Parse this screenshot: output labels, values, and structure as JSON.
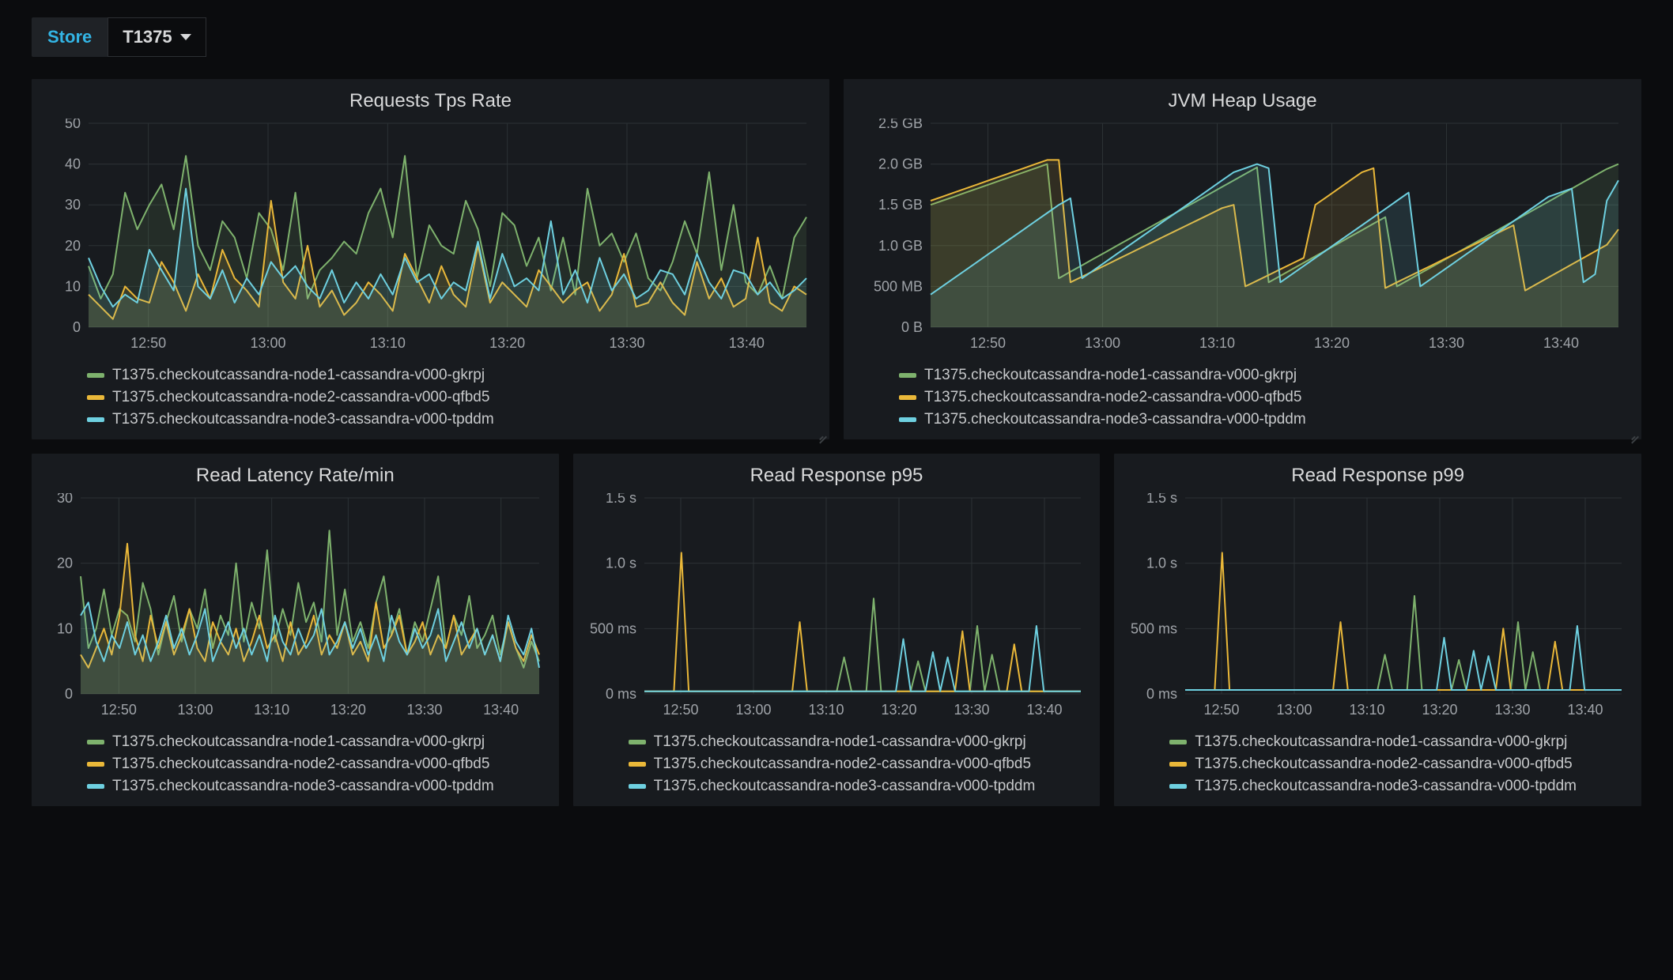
{
  "toolbar": {
    "store_label": "Store",
    "store_value": "T1375"
  },
  "colors": {
    "panel_bg": "#181b1f",
    "grid": "#2c3235",
    "axis_text": "#9fa3a8",
    "series1": "#7eb26d",
    "series2": "#eab839",
    "series3": "#6ed0e0",
    "store_label_fg": "#33b5e5"
  },
  "legend_labels": [
    "T1375.checkoutcassandra-node1-cassandra-v000-gkrpj",
    "T1375.checkoutcassandra-node2-cassandra-v000-qfbd5",
    "T1375.checkoutcassandra-node3-cassandra-v000-tpddm"
  ],
  "x_ticks": [
    "12:50",
    "13:00",
    "13:10",
    "13:20",
    "13:30",
    "13:40"
  ],
  "panels": {
    "tps": {
      "title": "Requests Tps Rate",
      "type": "line-area",
      "ylim": [
        0,
        50
      ],
      "ytick_step": 10,
      "y_labels": [
        "0",
        "10",
        "20",
        "30",
        "40",
        "50"
      ],
      "fill_opacity": 0.12,
      "line_width": 2,
      "n_points": 60,
      "series": [
        [
          15,
          7,
          13,
          33,
          24,
          30,
          35,
          24,
          42,
          20,
          14,
          26,
          22,
          12,
          28,
          24,
          14,
          33,
          7,
          14,
          17,
          21,
          18,
          28,
          34,
          22,
          42,
          12,
          25,
          20,
          18,
          31,
          24,
          10,
          28,
          25,
          15,
          22,
          9,
          22,
          8,
          34,
          20,
          23,
          16,
          23,
          12,
          9,
          16,
          26,
          18,
          38,
          14,
          30,
          11,
          8,
          15,
          7,
          22,
          27
        ],
        [
          8,
          5,
          2,
          10,
          7,
          6,
          16,
          11,
          4,
          13,
          7,
          19,
          12,
          9,
          5,
          31,
          11,
          7,
          20,
          5,
          9,
          3,
          6,
          11,
          8,
          4,
          18,
          12,
          6,
          15,
          8,
          5,
          20,
          6,
          11,
          8,
          5,
          14,
          10,
          6,
          9,
          11,
          4,
          8,
          18,
          5,
          6,
          11,
          6,
          3,
          16,
          7,
          12,
          5,
          7,
          22,
          6,
          4,
          10,
          8
        ],
        [
          17,
          10,
          5,
          8,
          6,
          19,
          14,
          9,
          34,
          10,
          7,
          14,
          6,
          12,
          8,
          16,
          12,
          15,
          10,
          7,
          14,
          6,
          11,
          7,
          13,
          8,
          17,
          11,
          13,
          7,
          11,
          9,
          21,
          7,
          18,
          10,
          12,
          9,
          26,
          8,
          14,
          6,
          17,
          9,
          13,
          7,
          9,
          14,
          13,
          8,
          18,
          11,
          7,
          14,
          13,
          8,
          11,
          7,
          9,
          12
        ]
      ]
    },
    "heap": {
      "title": "JVM Heap Usage",
      "type": "line-area",
      "ylim": [
        0,
        2.5
      ],
      "y_labels": [
        "0 B",
        "500 MB",
        "1.0 GB",
        "1.5 GB",
        "2.0 GB",
        "2.5 GB"
      ],
      "fill_opacity": 0.12,
      "line_width": 2,
      "n_points": 60,
      "series": [
        [
          1.5,
          1.55,
          1.6,
          1.65,
          1.7,
          1.75,
          1.8,
          1.85,
          1.9,
          1.95,
          2.0,
          0.6,
          0.68,
          0.76,
          0.84,
          0.92,
          1.0,
          1.08,
          1.16,
          1.24,
          1.32,
          1.4,
          1.48,
          1.56,
          1.64,
          1.72,
          1.8,
          1.88,
          1.96,
          0.55,
          0.63,
          0.71,
          0.79,
          0.87,
          0.95,
          1.03,
          1.11,
          1.19,
          1.27,
          1.35,
          0.5,
          0.58,
          0.66,
          0.74,
          0.82,
          0.9,
          0.98,
          1.06,
          1.14,
          1.22,
          1.3,
          1.38,
          1.46,
          1.54,
          1.62,
          1.7,
          1.78,
          1.86,
          1.94,
          2.0
        ],
        [
          1.55,
          1.6,
          1.65,
          1.7,
          1.75,
          1.8,
          1.85,
          1.9,
          1.95,
          2.0,
          2.05,
          2.05,
          0.55,
          0.62,
          0.69,
          0.76,
          0.83,
          0.9,
          0.97,
          1.04,
          1.11,
          1.18,
          1.25,
          1.32,
          1.39,
          1.46,
          1.5,
          0.5,
          0.57,
          0.64,
          0.71,
          0.78,
          0.85,
          1.5,
          1.6,
          1.7,
          1.8,
          1.9,
          1.95,
          0.48,
          0.55,
          0.62,
          0.69,
          0.76,
          0.83,
          0.9,
          0.97,
          1.04,
          1.11,
          1.18,
          1.25,
          0.45,
          0.53,
          0.61,
          0.69,
          0.77,
          0.85,
          0.93,
          1.01,
          1.2
        ],
        [
          0.4,
          0.5,
          0.6,
          0.7,
          0.8,
          0.9,
          1.0,
          1.1,
          1.2,
          1.3,
          1.4,
          1.5,
          1.58,
          0.6,
          0.7,
          0.8,
          0.9,
          1.0,
          1.1,
          1.2,
          1.3,
          1.4,
          1.5,
          1.6,
          1.7,
          1.8,
          1.9,
          1.95,
          2.0,
          1.95,
          0.55,
          0.65,
          0.75,
          0.85,
          0.95,
          1.05,
          1.15,
          1.25,
          1.35,
          1.45,
          1.55,
          1.65,
          0.5,
          0.6,
          0.7,
          0.8,
          0.9,
          1.0,
          1.1,
          1.2,
          1.3,
          1.4,
          1.5,
          1.6,
          1.65,
          1.7,
          0.55,
          0.65,
          1.55,
          1.8
        ]
      ]
    },
    "latency": {
      "title": "Read Latency Rate/min",
      "type": "line-area",
      "ylim": [
        0,
        30
      ],
      "ytick_step": 10,
      "y_labels": [
        "0",
        "10",
        "20",
        "30"
      ],
      "fill_opacity": 0.12,
      "line_width": 2,
      "n_points": 60,
      "series": [
        [
          18,
          7,
          10,
          16,
          9,
          13,
          12,
          8,
          17,
          13,
          6,
          11,
          15,
          8,
          13,
          10,
          16,
          7,
          12,
          9,
          20,
          8,
          14,
          10,
          22,
          8,
          13,
          9,
          17,
          11,
          14,
          8,
          25,
          9,
          16,
          8,
          11,
          7,
          14,
          18,
          9,
          13,
          6,
          11,
          8,
          13,
          18,
          7,
          12,
          9,
          15,
          7,
          9,
          12,
          6,
          11,
          7,
          4,
          8,
          5
        ],
        [
          6,
          4,
          7,
          10,
          6,
          12,
          23,
          9,
          5,
          12,
          7,
          11,
          6,
          9,
          13,
          7,
          5,
          11,
          8,
          6,
          10,
          5,
          8,
          12,
          7,
          9,
          5,
          11,
          6,
          8,
          12,
          6,
          9,
          7,
          11,
          6,
          8,
          5,
          14,
          7,
          9,
          12,
          6,
          8,
          11,
          6,
          9,
          7,
          12,
          6,
          8,
          10,
          6,
          9,
          5,
          11,
          7,
          5,
          9,
          6
        ],
        [
          12,
          14,
          8,
          5,
          9,
          7,
          11,
          6,
          9,
          5,
          8,
          12,
          7,
          10,
          6,
          9,
          13,
          5,
          8,
          11,
          7,
          10,
          6,
          9,
          5,
          12,
          8,
          6,
          10,
          7,
          9,
          13,
          6,
          8,
          11,
          7,
          10,
          6,
          9,
          5,
          12,
          8,
          6,
          10,
          7,
          9,
          13,
          5,
          8,
          11,
          7,
          10,
          6,
          9,
          5,
          12,
          8,
          6,
          10,
          4
        ]
      ]
    },
    "p95": {
      "title": "Read Response p95",
      "type": "line",
      "ylim": [
        0,
        1.5
      ],
      "y_labels": [
        "0 ms",
        "500 ms",
        "1.0 s",
        "1.5 s"
      ],
      "line_width": 2,
      "n_points": 60,
      "series": [
        [
          0.02,
          0.02,
          0.02,
          0.02,
          0.02,
          0.02,
          0.02,
          0.02,
          0.02,
          0.02,
          0.02,
          0.02,
          0.02,
          0.02,
          0.02,
          0.02,
          0.02,
          0.02,
          0.02,
          0.02,
          0.02,
          0.02,
          0.02,
          0.02,
          0.02,
          0.02,
          0.02,
          0.28,
          0.02,
          0.02,
          0.02,
          0.73,
          0.02,
          0.02,
          0.02,
          0.02,
          0.02,
          0.25,
          0.02,
          0.02,
          0.02,
          0.02,
          0.02,
          0.02,
          0.02,
          0.52,
          0.02,
          0.3,
          0.02,
          0.02,
          0.02,
          0.02,
          0.02,
          0.02,
          0.02,
          0.02,
          0.02,
          0.02,
          0.02,
          0.02
        ],
        [
          0.02,
          0.02,
          0.02,
          0.02,
          0.02,
          1.08,
          0.02,
          0.02,
          0.02,
          0.02,
          0.02,
          0.02,
          0.02,
          0.02,
          0.02,
          0.02,
          0.02,
          0.02,
          0.02,
          0.02,
          0.02,
          0.55,
          0.02,
          0.02,
          0.02,
          0.02,
          0.02,
          0.02,
          0.02,
          0.02,
          0.02,
          0.02,
          0.02,
          0.02,
          0.02,
          0.02,
          0.02,
          0.02,
          0.02,
          0.02,
          0.02,
          0.02,
          0.02,
          0.48,
          0.02,
          0.02,
          0.02,
          0.02,
          0.02,
          0.02,
          0.38,
          0.02,
          0.02,
          0.02,
          0.02,
          0.02,
          0.02,
          0.02,
          0.02,
          0.02
        ],
        [
          0.02,
          0.02,
          0.02,
          0.02,
          0.02,
          0.02,
          0.02,
          0.02,
          0.02,
          0.02,
          0.02,
          0.02,
          0.02,
          0.02,
          0.02,
          0.02,
          0.02,
          0.02,
          0.02,
          0.02,
          0.02,
          0.02,
          0.02,
          0.02,
          0.02,
          0.02,
          0.02,
          0.02,
          0.02,
          0.02,
          0.02,
          0.02,
          0.02,
          0.02,
          0.02,
          0.42,
          0.02,
          0.02,
          0.02,
          0.32,
          0.02,
          0.28,
          0.02,
          0.02,
          0.02,
          0.02,
          0.02,
          0.02,
          0.02,
          0.02,
          0.02,
          0.02,
          0.02,
          0.52,
          0.02,
          0.02,
          0.02,
          0.02,
          0.02,
          0.02
        ]
      ]
    },
    "p99": {
      "title": "Read Response p99",
      "type": "line",
      "ylim": [
        0,
        1.5
      ],
      "y_labels": [
        "0 ms",
        "500 ms",
        "1.0 s",
        "1.5 s"
      ],
      "line_width": 2,
      "n_points": 60,
      "series": [
        [
          0.03,
          0.03,
          0.03,
          0.03,
          0.03,
          0.03,
          0.03,
          0.03,
          0.03,
          0.03,
          0.03,
          0.03,
          0.03,
          0.03,
          0.03,
          0.03,
          0.03,
          0.03,
          0.03,
          0.03,
          0.03,
          0.03,
          0.03,
          0.03,
          0.03,
          0.03,
          0.03,
          0.3,
          0.03,
          0.03,
          0.03,
          0.75,
          0.03,
          0.03,
          0.03,
          0.03,
          0.03,
          0.26,
          0.03,
          0.03,
          0.03,
          0.03,
          0.03,
          0.03,
          0.03,
          0.55,
          0.03,
          0.32,
          0.03,
          0.03,
          0.03,
          0.03,
          0.03,
          0.03,
          0.03,
          0.03,
          0.03,
          0.03,
          0.03,
          0.03
        ],
        [
          0.03,
          0.03,
          0.03,
          0.03,
          0.03,
          1.08,
          0.03,
          0.03,
          0.03,
          0.03,
          0.03,
          0.03,
          0.03,
          0.03,
          0.03,
          0.03,
          0.03,
          0.03,
          0.03,
          0.03,
          0.03,
          0.55,
          0.03,
          0.03,
          0.03,
          0.03,
          0.03,
          0.03,
          0.03,
          0.03,
          0.03,
          0.03,
          0.03,
          0.03,
          0.03,
          0.03,
          0.03,
          0.03,
          0.03,
          0.03,
          0.03,
          0.03,
          0.03,
          0.5,
          0.03,
          0.03,
          0.03,
          0.03,
          0.03,
          0.03,
          0.4,
          0.03,
          0.03,
          0.03,
          0.03,
          0.03,
          0.03,
          0.03,
          0.03,
          0.03
        ],
        [
          0.03,
          0.03,
          0.03,
          0.03,
          0.03,
          0.03,
          0.03,
          0.03,
          0.03,
          0.03,
          0.03,
          0.03,
          0.03,
          0.03,
          0.03,
          0.03,
          0.03,
          0.03,
          0.03,
          0.03,
          0.03,
          0.03,
          0.03,
          0.03,
          0.03,
          0.03,
          0.03,
          0.03,
          0.03,
          0.03,
          0.03,
          0.03,
          0.03,
          0.03,
          0.03,
          0.43,
          0.03,
          0.03,
          0.03,
          0.33,
          0.03,
          0.29,
          0.03,
          0.03,
          0.03,
          0.03,
          0.03,
          0.03,
          0.03,
          0.03,
          0.03,
          0.03,
          0.03,
          0.52,
          0.03,
          0.03,
          0.03,
          0.03,
          0.03,
          0.03
        ]
      ]
    }
  }
}
